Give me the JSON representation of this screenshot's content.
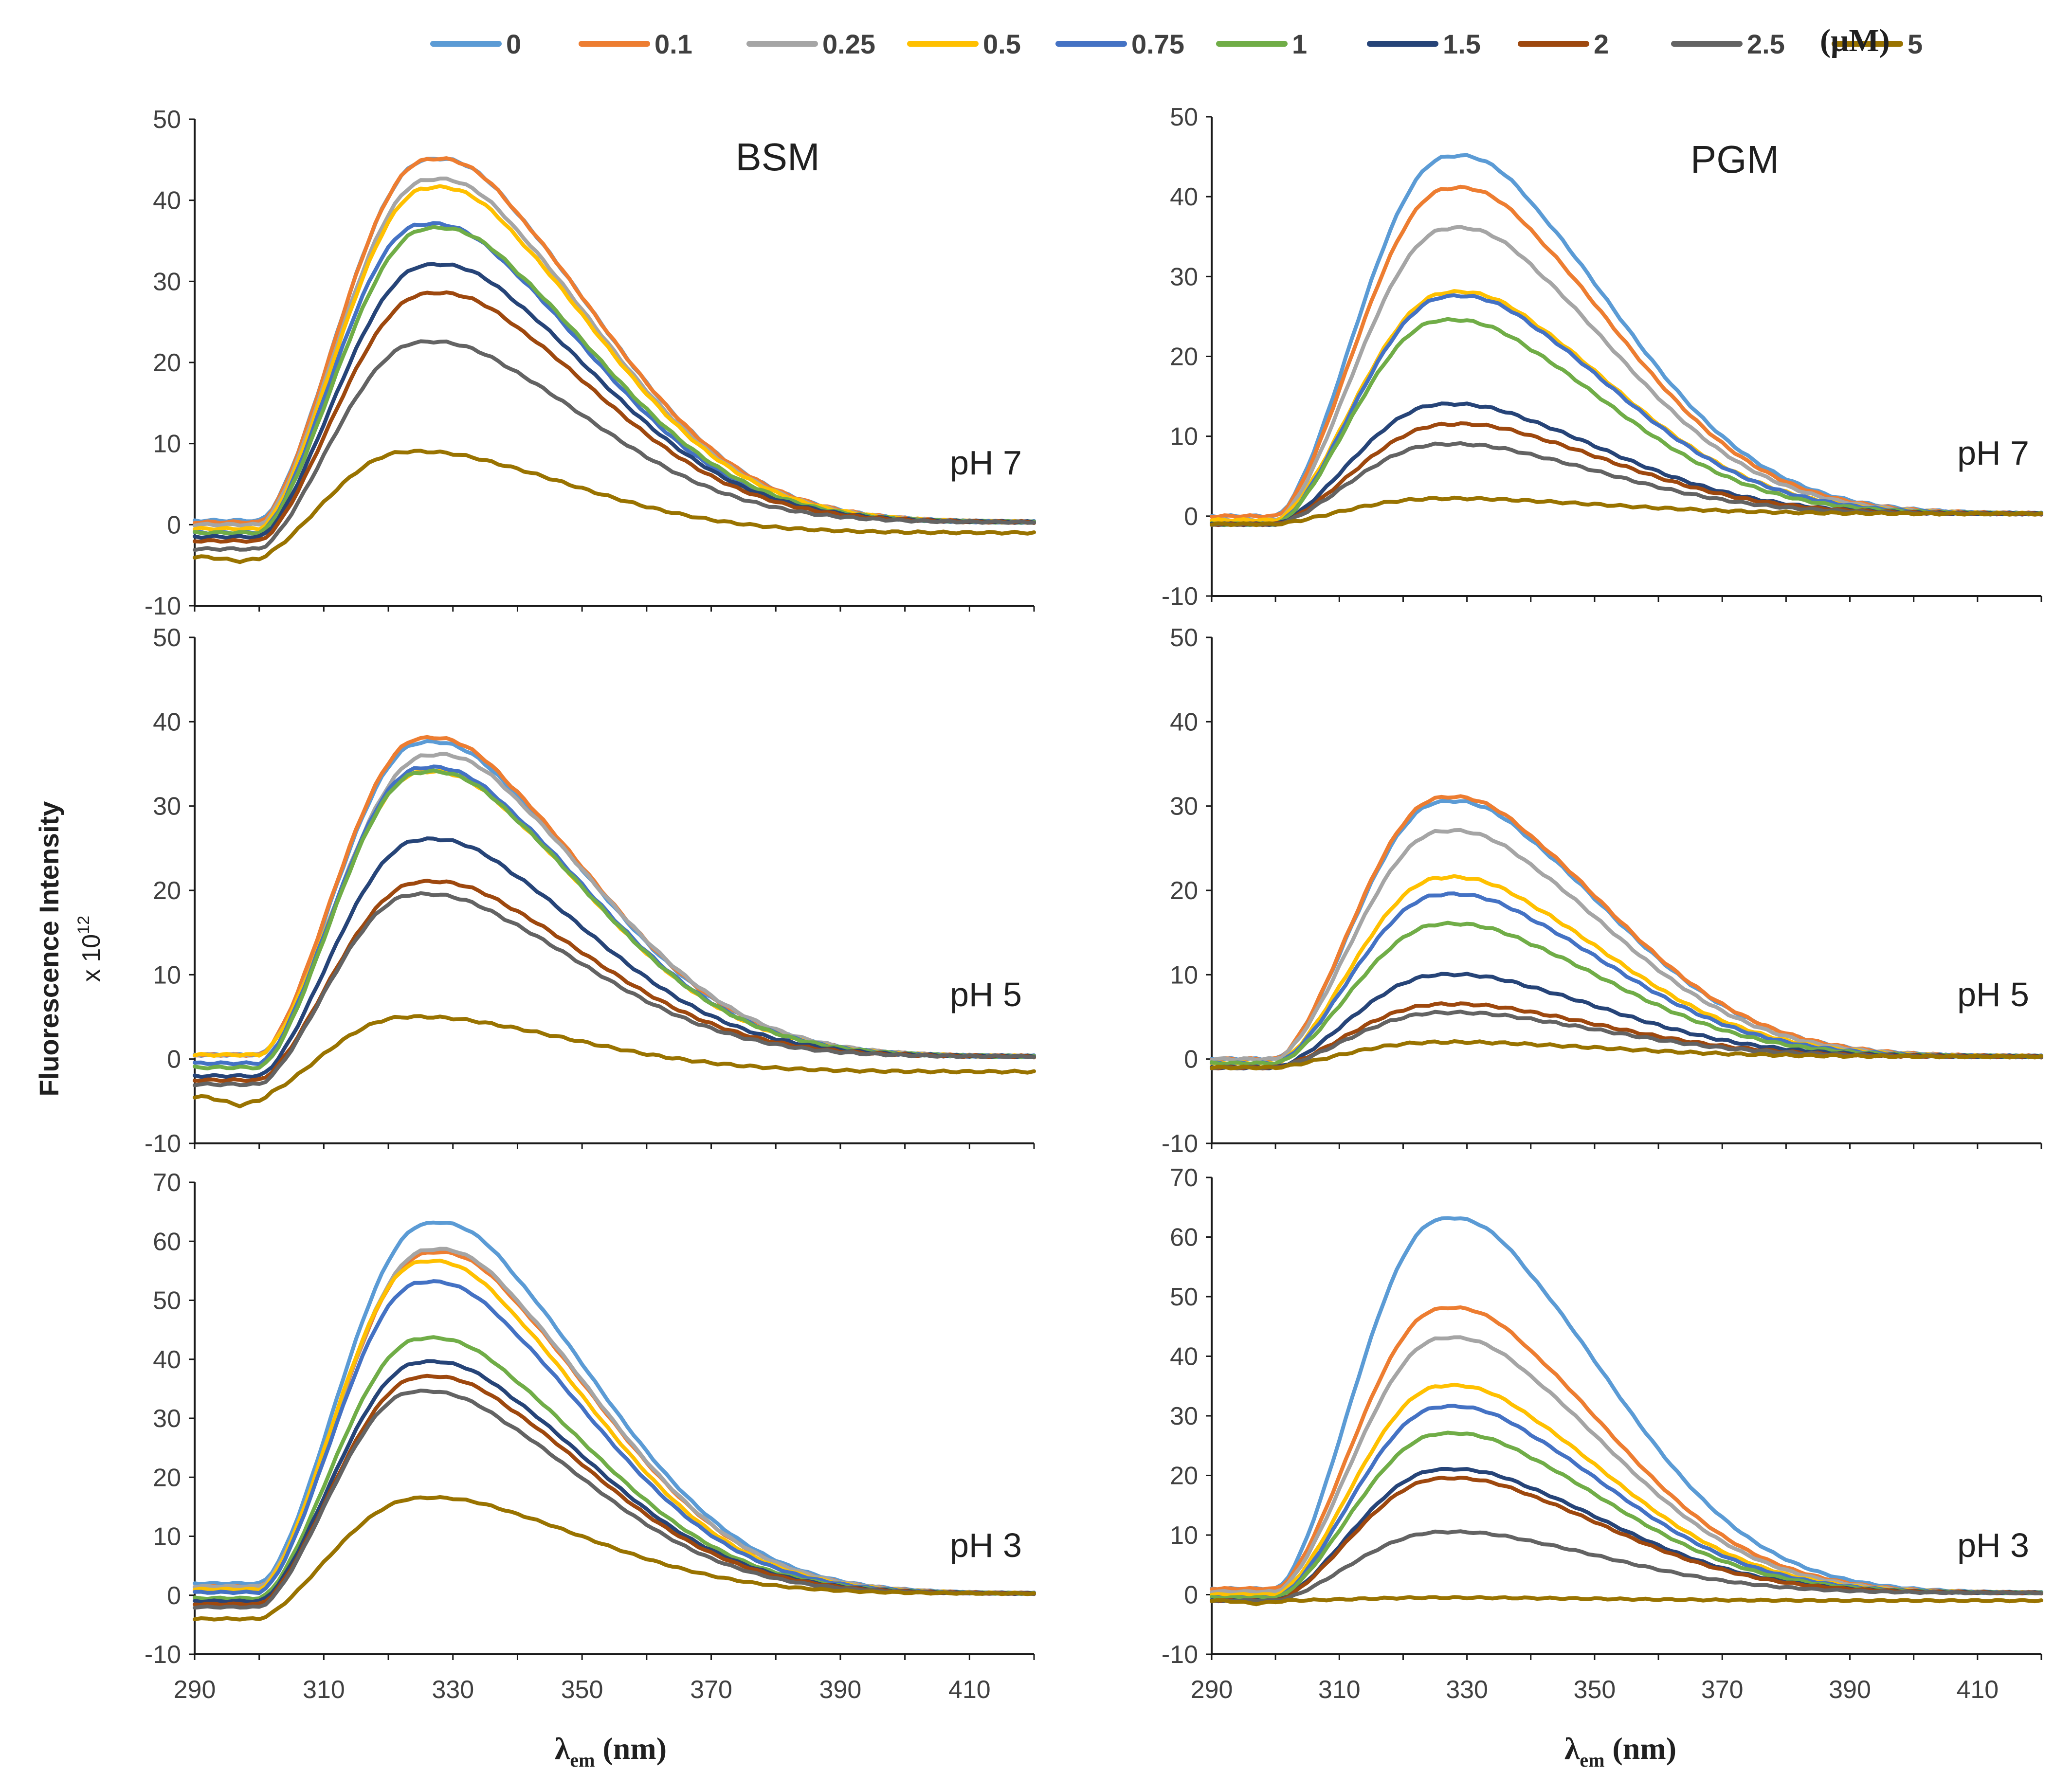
{
  "legend": {
    "unit": "(μM)",
    "entries": [
      {
        "label": "0",
        "color": "#5B9BD5"
      },
      {
        "label": "0.1",
        "color": "#ED7D31"
      },
      {
        "label": "0.25",
        "color": "#A5A5A5"
      },
      {
        "label": "0.5",
        "color": "#FFC000"
      },
      {
        "label": "0.75",
        "color": "#4472C4"
      },
      {
        "label": "1",
        "color": "#70AD47"
      },
      {
        "label": "1.5",
        "color": "#264478"
      },
      {
        "label": "2",
        "color": "#9E480E"
      },
      {
        "label": "2.5",
        "color": "#636363"
      },
      {
        "label": "5",
        "color": "#997300"
      }
    ]
  },
  "ylabel": {
    "main": "Fluorescence Intensity",
    "multiplier": "x 10",
    "exponent": "12"
  },
  "xlabel": {
    "lambda": "λ",
    "sub": "em",
    "unit": " (nm)"
  },
  "chart_data": [
    {
      "type": "line",
      "column": "BSM",
      "row": "pH 7",
      "title": "BSM",
      "ph_label": "pH 7",
      "xlim": [
        290,
        420
      ],
      "ylim": [
        -10,
        50
      ],
      "xticks": [
        "290",
        "310",
        "330",
        "350",
        "370",
        "390",
        "410"
      ],
      "yticks": [
        "-10",
        "0",
        "10",
        "20",
        "30",
        "40",
        "50"
      ],
      "series": [
        {
          "name": "0",
          "peak": 45,
          "peak_x": 326,
          "start": 0.5
        },
        {
          "name": "0.1",
          "peak": 45,
          "peak_x": 326,
          "start": 0.3
        },
        {
          "name": "0.25",
          "peak": 42.5,
          "peak_x": 326,
          "start": 0
        },
        {
          "name": "0.5",
          "peak": 41.5,
          "peak_x": 326,
          "start": -0.5
        },
        {
          "name": "0.75",
          "peak": 37,
          "peak_x": 325,
          "start": -1
        },
        {
          "name": "1",
          "peak": 36.5,
          "peak_x": 326,
          "start": -1
        },
        {
          "name": "1.5",
          "peak": 32,
          "peak_x": 326,
          "start": -1.5
        },
        {
          "name": "2",
          "peak": 28.5,
          "peak_x": 326,
          "start": -2
        },
        {
          "name": "2.5",
          "peak": 22.5,
          "peak_x": 325,
          "start": -3
        },
        {
          "name": "5",
          "peak": 9,
          "peak_x": 323,
          "start": -4,
          "dip": -4.5,
          "tail": -1
        }
      ]
    },
    {
      "type": "line",
      "column": "PGM",
      "row": "pH 7",
      "title": "PGM",
      "ph_label": "pH 7",
      "xlim": [
        290,
        420
      ],
      "ylim": [
        -10,
        50
      ],
      "xticks": [
        "290",
        "310",
        "330",
        "350",
        "370",
        "390",
        "410"
      ],
      "yticks": [
        "-10",
        "0",
        "10",
        "20",
        "30",
        "40",
        "50"
      ],
      "series": [
        {
          "name": "0",
          "peak": 45,
          "peak_x": 327,
          "start": 0
        },
        {
          "name": "0.1",
          "peak": 41,
          "peak_x": 327,
          "start": 0
        },
        {
          "name": "0.25",
          "peak": 36,
          "peak_x": 327,
          "start": -0.5
        },
        {
          "name": "0.5",
          "peak": 28,
          "peak_x": 327,
          "start": -0.5
        },
        {
          "name": "0.75",
          "peak": 27.5,
          "peak_x": 327,
          "start": -1
        },
        {
          "name": "1",
          "peak": 24.5,
          "peak_x": 326,
          "start": -1
        },
        {
          "name": "1.5",
          "peak": 14,
          "peak_x": 326,
          "start": -1
        },
        {
          "name": "2",
          "peak": 11.5,
          "peak_x": 327,
          "start": -1
        },
        {
          "name": "2.5",
          "peak": 9,
          "peak_x": 326,
          "start": -1
        },
        {
          "name": "5",
          "peak": 2.2,
          "peak_x": 326,
          "start": -1
        }
      ]
    },
    {
      "type": "line",
      "column": "BSM",
      "row": "pH 5",
      "title": "",
      "ph_label": "pH 5",
      "xlim": [
        290,
        420
      ],
      "ylim": [
        -10,
        50
      ],
      "xticks": [
        "290",
        "310",
        "330",
        "350",
        "370",
        "390",
        "410"
      ],
      "yticks": [
        "-10",
        "0",
        "10",
        "20",
        "30",
        "40",
        "50"
      ],
      "series": [
        {
          "name": "0",
          "peak": 37.5,
          "peak_x": 325,
          "start": 0.5
        },
        {
          "name": "0.1",
          "peak": 38,
          "peak_x": 325,
          "start": 0.5
        },
        {
          "name": "0.25",
          "peak": 36,
          "peak_x": 326,
          "start": 0.5
        },
        {
          "name": "0.5",
          "peak": 34,
          "peak_x": 325,
          "start": 0.5
        },
        {
          "name": "0.75",
          "peak": 34.5,
          "peak_x": 325,
          "start": -0.5
        },
        {
          "name": "1",
          "peak": 34,
          "peak_x": 325,
          "start": -1
        },
        {
          "name": "1.5",
          "peak": 26,
          "peak_x": 325,
          "start": -2
        },
        {
          "name": "2",
          "peak": 21,
          "peak_x": 325,
          "start": -2.5
        },
        {
          "name": "2.5",
          "peak": 19.5,
          "peak_x": 324,
          "start": -3
        },
        {
          "name": "5",
          "peak": 5,
          "peak_x": 323,
          "start": -4.5,
          "dip": -5.5,
          "tail": -1.5
        }
      ]
    },
    {
      "type": "line",
      "column": "PGM",
      "row": "pH 5",
      "title": "",
      "ph_label": "pH 5",
      "xlim": [
        290,
        420
      ],
      "ylim": [
        -10,
        50
      ],
      "xticks": [
        "290",
        "310",
        "330",
        "350",
        "370",
        "390",
        "410"
      ],
      "yticks": [
        "-10",
        "0",
        "10",
        "20",
        "30",
        "40",
        "50"
      ],
      "series": [
        {
          "name": "0",
          "peak": 30.5,
          "peak_x": 326,
          "start": 0
        },
        {
          "name": "0.1",
          "peak": 31,
          "peak_x": 326,
          "start": 0
        },
        {
          "name": "0.25",
          "peak": 27,
          "peak_x": 326,
          "start": 0
        },
        {
          "name": "0.5",
          "peak": 21.5,
          "peak_x": 326,
          "start": -0.5
        },
        {
          "name": "0.75",
          "peak": 19.5,
          "peak_x": 326,
          "start": -0.5
        },
        {
          "name": "1",
          "peak": 16,
          "peak_x": 326,
          "start": -0.5
        },
        {
          "name": "1.5",
          "peak": 10,
          "peak_x": 326,
          "start": -1
        },
        {
          "name": "2",
          "peak": 6.5,
          "peak_x": 326,
          "start": -1
        },
        {
          "name": "2.5",
          "peak": 5.5,
          "peak_x": 326,
          "start": -1
        },
        {
          "name": "5",
          "peak": 2,
          "peak_x": 326,
          "start": -1
        }
      ]
    },
    {
      "type": "line",
      "column": "BSM",
      "row": "pH 3",
      "title": "",
      "ph_label": "pH 3",
      "xlim": [
        290,
        420
      ],
      "ylim": [
        -10,
        70
      ],
      "xticks": [
        "290",
        "310",
        "330",
        "350",
        "370",
        "390",
        "410"
      ],
      "yticks": [
        "-10",
        "0",
        "10",
        "20",
        "30",
        "40",
        "50",
        "60",
        "70"
      ],
      "series": [
        {
          "name": "0",
          "peak": 63,
          "peak_x": 326,
          "start": 2
        },
        {
          "name": "0.1",
          "peak": 58,
          "peak_x": 326,
          "start": 1.5
        },
        {
          "name": "0.25",
          "peak": 58.5,
          "peak_x": 326,
          "start": 1.5
        },
        {
          "name": "0.5",
          "peak": 56.5,
          "peak_x": 325,
          "start": 1
        },
        {
          "name": "0.75",
          "peak": 53,
          "peak_x": 325,
          "start": 0.5
        },
        {
          "name": "1",
          "peak": 43.5,
          "peak_x": 325,
          "start": -0.5
        },
        {
          "name": "1.5",
          "peak": 39.5,
          "peak_x": 325,
          "start": -1
        },
        {
          "name": "2",
          "peak": 37,
          "peak_x": 325,
          "start": -1.5
        },
        {
          "name": "2.5",
          "peak": 34.5,
          "peak_x": 324,
          "start": -2
        },
        {
          "name": "5",
          "peak": 16.5,
          "peak_x": 325,
          "start": -4
        }
      ]
    },
    {
      "type": "line",
      "column": "PGM",
      "row": "pH 3",
      "title": "",
      "ph_label": "pH 3",
      "xlim": [
        290,
        420
      ],
      "ylim": [
        -10,
        70
      ],
      "xticks": [
        "290",
        "310",
        "330",
        "350",
        "370",
        "390",
        "410"
      ],
      "yticks": [
        "-10",
        "0",
        "10",
        "20",
        "30",
        "40",
        "50",
        "60",
        "70"
      ],
      "series": [
        {
          "name": "0",
          "peak": 63,
          "peak_x": 326,
          "start": 1
        },
        {
          "name": "0.1",
          "peak": 48,
          "peak_x": 326,
          "start": 1
        },
        {
          "name": "0.25",
          "peak": 43,
          "peak_x": 326,
          "start": 0.5
        },
        {
          "name": "0.5",
          "peak": 35,
          "peak_x": 326,
          "start": 0
        },
        {
          "name": "0.75",
          "peak": 31.5,
          "peak_x": 326,
          "start": -0.5
        },
        {
          "name": "1",
          "peak": 27,
          "peak_x": 326,
          "start": -0.5
        },
        {
          "name": "1.5",
          "peak": 21,
          "peak_x": 326,
          "start": -1
        },
        {
          "name": "2",
          "peak": 19.5,
          "peak_x": 326,
          "start": -1
        },
        {
          "name": "2.5",
          "peak": 10.5,
          "peak_x": 326,
          "start": -1
        },
        {
          "name": "5",
          "peak": -0.5,
          "peak_x": 326,
          "start": -1,
          "dip": -1.5,
          "tail": -1
        }
      ]
    }
  ]
}
